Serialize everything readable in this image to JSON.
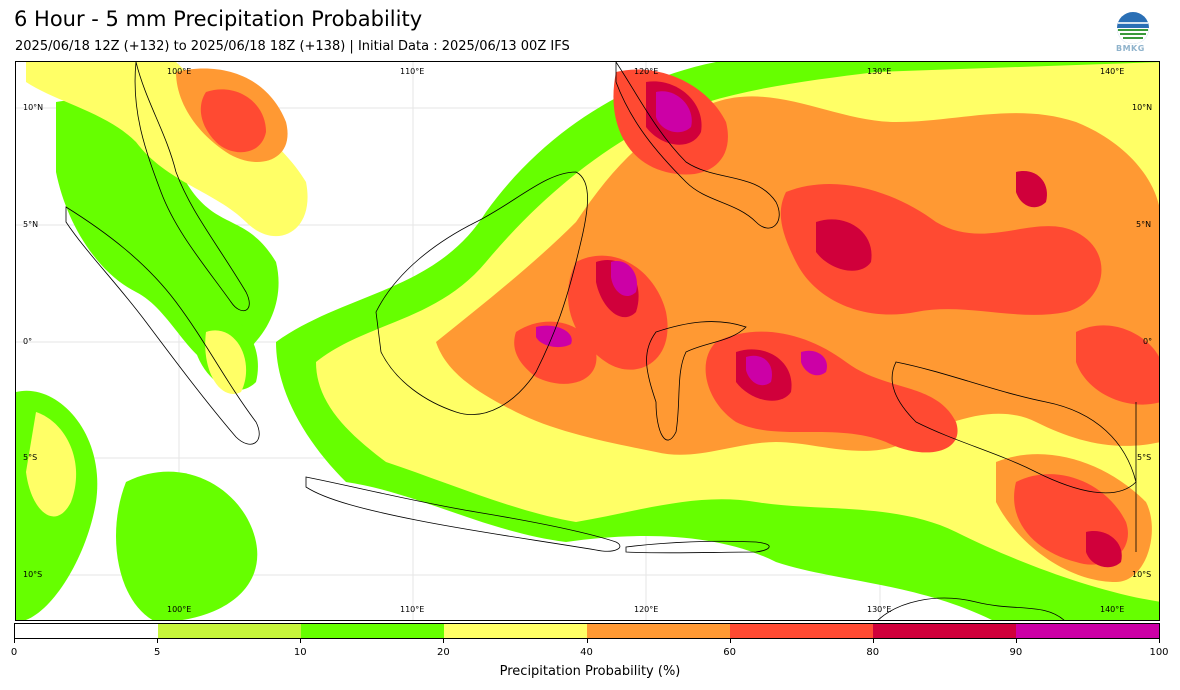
{
  "header": {
    "title": "6 Hour - 5 mm Precipitation Probability",
    "subtitle": "2025/06/18 12Z (+132) to 2025/06/18 18Z (+138) | Initial Data : 2025/06/13 00Z IFS"
  },
  "logo": {
    "icon": "bmkg-logo",
    "text": "BMKG"
  },
  "map": {
    "lon_labels_top": [
      "100°E",
      "110°E",
      "120°E",
      "130°E",
      "140°E"
    ],
    "lon_labels_bottom": [
      "100°E",
      "110°E",
      "120°E",
      "130°E",
      "140°E"
    ],
    "lat_labels_left": [
      "10°N",
      "5°N",
      "0°",
      "5°S",
      "10°S"
    ],
    "lat_labels_right": [
      "10°N",
      "5°N",
      "0°",
      "5°S",
      "10°S"
    ]
  },
  "colorbar": {
    "label": "Precipitation Probability (%)",
    "ticks": [
      "0",
      "5",
      "10",
      "20",
      "40",
      "60",
      "80",
      "90",
      "100"
    ],
    "colors": [
      "#ffffff",
      "#c6f53b",
      "#66ff00",
      "#ffff66",
      "#ff9933",
      "#ff4a32",
      "#d0003b",
      "#cc00a6"
    ]
  }
}
